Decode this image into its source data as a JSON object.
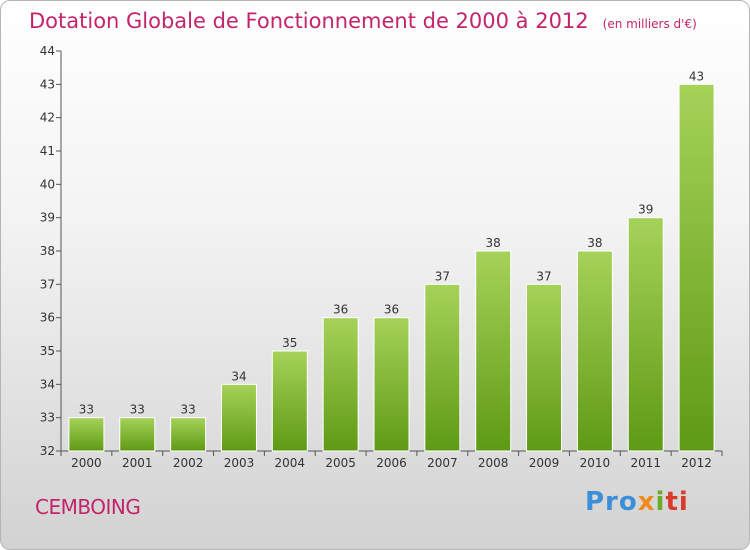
{
  "title": "Dotation Globale de Fonctionnement de 2000 à 2012",
  "units": "(en milliers d'€)",
  "commune": "CEMBOING",
  "brand": {
    "p1": "Pro",
    "p2": "x",
    "p3": "i",
    "p4": "ti"
  },
  "colors": {
    "title": "#c4246c",
    "bar_top": "#a6d25a",
    "bar_bottom": "#5e9a14"
  },
  "chart_data": {
    "type": "bar",
    "categories": [
      "2000",
      "2001",
      "2002",
      "2003",
      "2004",
      "2005",
      "2006",
      "2007",
      "2008",
      "2009",
      "2010",
      "2011",
      "2012"
    ],
    "values": [
      33,
      33,
      33,
      34,
      35,
      36,
      36,
      37,
      38,
      37,
      38,
      39,
      43
    ],
    "ylim": [
      32,
      44
    ],
    "yticks": [
      32,
      33,
      34,
      35,
      36,
      37,
      38,
      39,
      40,
      41,
      42,
      43,
      44
    ],
    "grid": false
  }
}
